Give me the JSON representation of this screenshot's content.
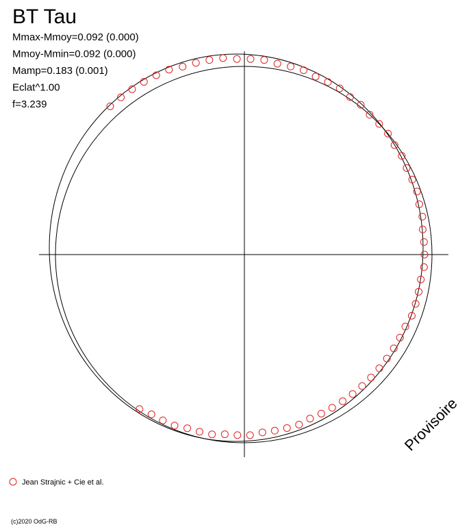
{
  "chart_data": {
    "type": "polar-scatter",
    "title": "BT Tau",
    "stats": [
      "Mmax-Mmoy=0.092 (0.000)",
      "Mmoy-Mmin=0.092 (0.000)",
      "Mamp=0.183 (0.001)",
      "Eclat^1.00",
      "f=3.239"
    ],
    "watermark": "Provisoire",
    "footer": "(c)2020 OdG-RB",
    "series": [
      {
        "name": "Jean Strajnic + Cie et al.",
        "color": "#e02020",
        "angle": [
          -124,
          -120,
          -116,
          -112,
          -108,
          -104,
          -100,
          -96,
          -92,
          -88,
          -84,
          -80,
          -76,
          -72,
          -68,
          -64,
          -60,
          -56,
          -52,
          -48,
          -44,
          -40,
          -36,
          -32,
          -28,
          -24,
          -20,
          -16,
          -12,
          -8,
          -4,
          0,
          4,
          8,
          12,
          16,
          20,
          24,
          28,
          32,
          36,
          40,
          44,
          48,
          52,
          56,
          60,
          64,
          68,
          72,
          76,
          80,
          84,
          88,
          92,
          96,
          100,
          104,
          108,
          112,
          116,
          120,
          124,
          128,
          132
        ],
        "values": [
          0.99,
          0.98,
          0.98,
          0.98,
          0.97,
          0.97,
          0.97,
          0.96,
          0.96,
          0.96,
          0.95,
          0.95,
          0.95,
          0.95,
          0.94,
          0.94,
          0.94,
          0.94,
          0.94,
          0.94,
          0.94,
          0.94,
          0.94,
          0.94,
          0.94,
          0.94,
          0.95,
          0.95,
          0.95,
          0.95,
          0.96,
          0.96,
          0.96,
          0.96,
          0.97,
          0.97,
          0.98,
          0.98,
          0.98,
          0.99,
          0.99,
          1.0,
          1.0,
          1.0,
          1.01,
          1.01,
          1.02,
          1.02,
          1.02,
          1.03,
          1.03,
          1.03,
          1.04,
          1.04,
          1.04,
          1.05,
          1.05,
          1.05,
          1.05,
          1.06,
          1.06,
          1.06,
          1.06,
          1.06,
          1.06
        ]
      }
    ],
    "rlim": [
      0,
      1
    ]
  }
}
